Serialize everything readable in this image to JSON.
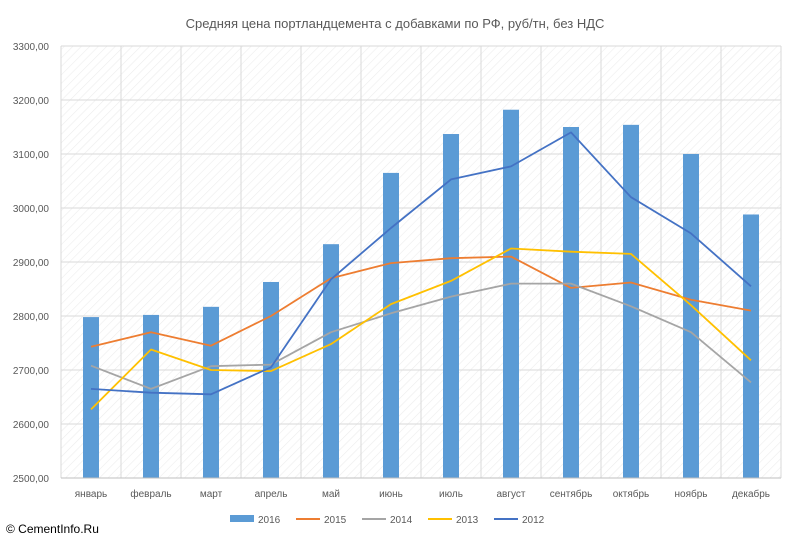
{
  "chart_data": {
    "type": "bar",
    "title": "Средняя цена портландцемента с добавками по РФ, руб/тн, без НДС",
    "xlabel": "",
    "ylabel": "",
    "ylim": [
      2500,
      3300
    ],
    "y_ticks": [
      "2500,00",
      "2600,00",
      "2700,00",
      "2800,00",
      "2900,00",
      "3000,00",
      "3100,00",
      "3200,00",
      "3300,00"
    ],
    "grid": true,
    "legend_position": "bottom",
    "categories": [
      "январь",
      "февраль",
      "март",
      "апрель",
      "май",
      "июнь",
      "июль",
      "август",
      "сентябрь",
      "октябрь",
      "ноябрь",
      "декабрь"
    ],
    "series": [
      {
        "name": "2016",
        "kind": "bar",
        "color": "#5b9bd5",
        "values": [
          2798,
          2802,
          2817,
          2863,
          2933,
          3065,
          3137,
          3182,
          3150,
          3154,
          3100,
          2988
        ]
      },
      {
        "name": "2015",
        "kind": "line",
        "color": "#ed7d31",
        "values": [
          2743,
          2770,
          2745,
          2800,
          2870,
          2898,
          2907,
          2910,
          2852,
          2862,
          2830,
          2810
        ]
      },
      {
        "name": "2014",
        "kind": "line",
        "color": "#a5a5a5",
        "values": [
          2708,
          2665,
          2707,
          2710,
          2770,
          2805,
          2836,
          2860,
          2860,
          2818,
          2770,
          2677
        ]
      },
      {
        "name": "2013",
        "kind": "line",
        "color": "#ffc000",
        "values": [
          2627,
          2738,
          2700,
          2698,
          2748,
          2822,
          2865,
          2925,
          2919,
          2915,
          2820,
          2718
        ]
      },
      {
        "name": "2012",
        "kind": "line",
        "color": "#4472c4",
        "values": [
          2665,
          2658,
          2655,
          2705,
          2868,
          2963,
          3053,
          3077,
          3140,
          3020,
          2953,
          2855
        ]
      }
    ]
  },
  "footer": {
    "copyright": "© CementInfo.Ru"
  }
}
